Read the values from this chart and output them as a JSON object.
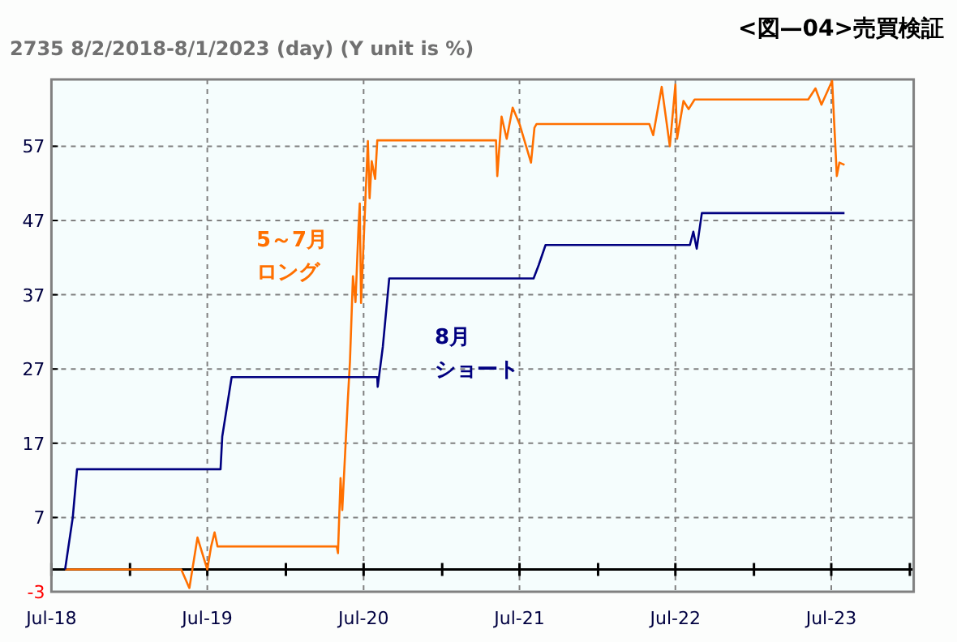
{
  "chart_data": {
    "type": "line",
    "title": "<図—04>売買検証",
    "subtitle": "2735 8/2/2018-8/1/2023 (day)  (Y unit is %)",
    "xlim": [
      "2018-07-01",
      "2024-01-10"
    ],
    "xticks": [
      {
        "value": "2018-07-01",
        "label": "Jul-18"
      },
      {
        "value": "2019-01-01",
        "label": null
      },
      {
        "value": "2019-07-01",
        "label": "Jul-19"
      },
      {
        "value": "2020-01-01",
        "label": null
      },
      {
        "value": "2020-07-01",
        "label": "Jul-20"
      },
      {
        "value": "2021-01-01",
        "label": null
      },
      {
        "value": "2021-07-01",
        "label": "Jul-21"
      },
      {
        "value": "2022-01-01",
        "label": null
      },
      {
        "value": "2022-07-01",
        "label": "Jul-22"
      },
      {
        "value": "2023-01-01",
        "label": null
      },
      {
        "value": "2023-07-01",
        "label": "Jul-23"
      },
      {
        "value": "2024-01-01",
        "label": null
      }
    ],
    "ylim": [
      -3,
      66
    ],
    "yticks": [
      -3,
      7,
      17,
      27,
      37,
      47,
      57
    ],
    "grid": true,
    "ref_lines": [
      {
        "axis": "y",
        "value": 0,
        "label": null,
        "color": "#000000"
      }
    ],
    "series": [
      {
        "name": "5～7月ロング",
        "color": "#ff7000",
        "x": [
          "2018-08-02",
          "2019-05-01",
          "2019-05-20",
          "2019-06-08",
          "2019-07-01",
          "2019-07-10",
          "2019-07-18",
          "2019-07-25",
          "2020-04-29",
          "2020-05-02",
          "2020-05-08",
          "2020-05-12",
          "2020-05-25",
          "2020-05-30",
          "2020-06-06",
          "2020-06-12",
          "2020-06-19",
          "2020-06-22",
          "2020-06-25",
          "2020-07-11",
          "2020-07-15",
          "2020-07-20",
          "2020-07-28",
          "2020-08-02",
          "2021-05-07",
          "2021-05-10",
          "2021-05-20",
          "2021-06-01",
          "2021-06-15",
          "2021-07-01",
          "2021-07-28",
          "2021-08-05",
          "2021-08-10",
          "2022-05-01",
          "2022-05-10",
          "2022-05-30",
          "2022-06-18",
          "2022-07-01",
          "2022-07-05",
          "2022-07-20",
          "2022-08-01",
          "2022-08-15",
          "2023-05-08",
          "2023-05-25",
          "2023-06-08",
          "2023-07-03",
          "2023-07-14",
          "2023-07-20",
          "2023-08-01"
        ],
        "values": [
          0,
          0,
          -2.5,
          4.3,
          0,
          3.1,
          5,
          3.1,
          3.1,
          2.2,
          12.3,
          8,
          22.8,
          28,
          39.5,
          36,
          46,
          49.3,
          35.9,
          57.7,
          50,
          55,
          52.6,
          57.8,
          57.8,
          53,
          61,
          58,
          62.2,
          60,
          54.8,
          59.5,
          60,
          60,
          58.5,
          65,
          57,
          65.3,
          58,
          63.1,
          62,
          63.3,
          63.3,
          64.8,
          62.6,
          65.8,
          53,
          54.8,
          54.5
        ]
      },
      {
        "name": "8月ショート",
        "color": "#000080",
        "x": [
          "2018-08-02",
          "2018-08-20",
          "2018-08-30",
          "2019-08-01",
          "2019-08-05",
          "2019-08-27",
          "2020-08-02",
          "2020-08-03",
          "2020-08-15",
          "2020-08-30",
          "2021-08-03",
          "2021-08-15",
          "2021-08-31",
          "2022-08-04",
          "2022-08-12",
          "2022-08-20",
          "2022-09-01",
          "2023-08-01"
        ],
        "values": [
          0,
          7,
          13.5,
          13.5,
          17.9,
          25.9,
          25.9,
          24.6,
          30,
          39.2,
          39.2,
          41,
          43.7,
          43.7,
          45.5,
          43.2,
          48,
          48
        ]
      }
    ]
  }
}
